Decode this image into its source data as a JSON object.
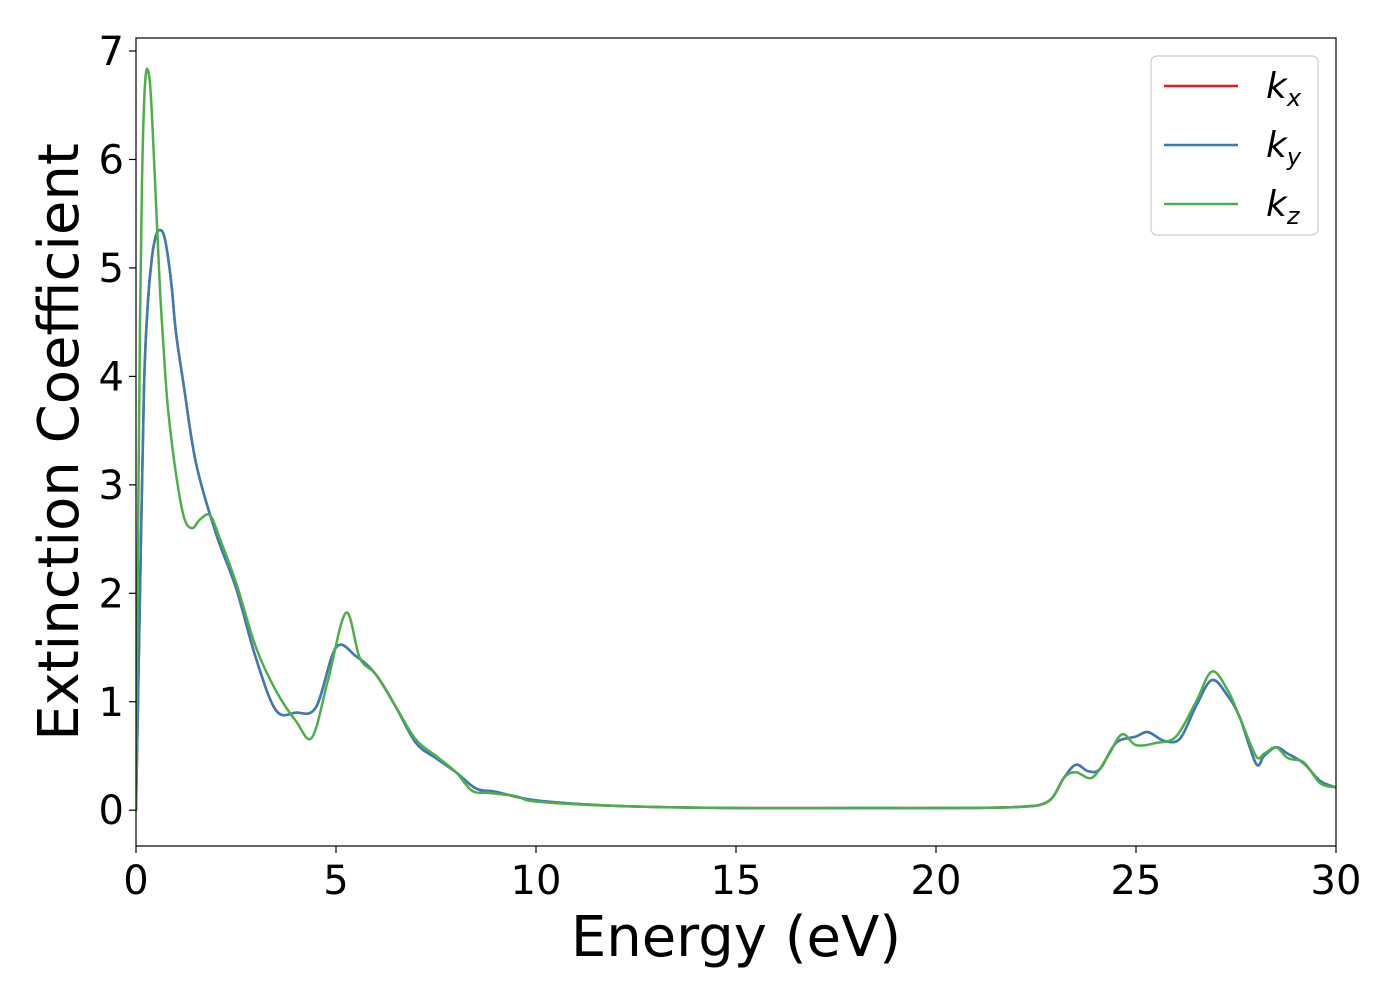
{
  "chart_data": {
    "type": "line",
    "xlabel": "Energy (eV)",
    "ylabel": "Extinction Coefficient",
    "xlim": [
      0,
      30
    ],
    "ylim": [
      -0.33,
      7.12
    ],
    "x_ticks": [
      "0",
      "5",
      "10",
      "15",
      "20",
      "25",
      "30"
    ],
    "y_ticks": [
      "0",
      "1",
      "2",
      "3",
      "4",
      "5",
      "6",
      "7"
    ],
    "grid": false,
    "legend_position": "top-right",
    "series": [
      {
        "name": "k",
        "subscript": "x",
        "color": "#e41a1c",
        "x": [
          0,
          0.1,
          0.2,
          0.3,
          0.4,
          0.5,
          0.6,
          0.7,
          0.8,
          0.9,
          1.0,
          1.2,
          1.5,
          2.0,
          2.5,
          3.0,
          3.5,
          4.0,
          4.5,
          5.0,
          5.5,
          6.0,
          6.5,
          7.0,
          7.5,
          8.0,
          8.5,
          9.0,
          10.0,
          12.0,
          15.0,
          18.0,
          20.0,
          22.0,
          22.8,
          23.2,
          23.5,
          23.8,
          24.1,
          24.5,
          25.0,
          25.3,
          25.7,
          26.1,
          26.5,
          26.9,
          27.3,
          27.6,
          28.0,
          28.2,
          28.5,
          28.8,
          29.2,
          29.6,
          30.0
        ],
        "y": [
          0.0,
          2.0,
          3.9,
          4.7,
          5.1,
          5.3,
          5.35,
          5.3,
          5.1,
          4.8,
          4.4,
          3.9,
          3.2,
          2.55,
          2.05,
          1.4,
          0.92,
          0.9,
          0.95,
          1.5,
          1.42,
          1.25,
          0.95,
          0.62,
          0.48,
          0.35,
          0.2,
          0.17,
          0.09,
          0.04,
          0.02,
          0.02,
          0.02,
          0.03,
          0.08,
          0.3,
          0.42,
          0.36,
          0.38,
          0.62,
          0.68,
          0.72,
          0.64,
          0.66,
          0.96,
          1.2,
          1.05,
          0.85,
          0.43,
          0.5,
          0.58,
          0.52,
          0.43,
          0.27,
          0.21
        ]
      },
      {
        "name": "k",
        "subscript": "y",
        "color": "#377eb8",
        "x": [
          0,
          0.1,
          0.2,
          0.3,
          0.4,
          0.5,
          0.6,
          0.7,
          0.8,
          0.9,
          1.0,
          1.2,
          1.5,
          2.0,
          2.5,
          3.0,
          3.5,
          4.0,
          4.5,
          5.0,
          5.5,
          6.0,
          6.5,
          7.0,
          7.5,
          8.0,
          8.5,
          9.0,
          10.0,
          12.0,
          15.0,
          18.0,
          20.0,
          22.0,
          22.8,
          23.2,
          23.5,
          23.8,
          24.1,
          24.5,
          25.0,
          25.3,
          25.7,
          26.1,
          26.5,
          26.9,
          27.3,
          27.6,
          28.0,
          28.2,
          28.5,
          28.8,
          29.2,
          29.6,
          30.0
        ],
        "y": [
          0.0,
          2.0,
          3.9,
          4.7,
          5.1,
          5.3,
          5.35,
          5.3,
          5.1,
          4.8,
          4.4,
          3.9,
          3.2,
          2.55,
          2.05,
          1.4,
          0.92,
          0.9,
          0.95,
          1.5,
          1.42,
          1.25,
          0.95,
          0.62,
          0.48,
          0.35,
          0.2,
          0.17,
          0.09,
          0.04,
          0.02,
          0.02,
          0.02,
          0.03,
          0.08,
          0.3,
          0.42,
          0.36,
          0.38,
          0.62,
          0.68,
          0.72,
          0.64,
          0.66,
          0.96,
          1.2,
          1.05,
          0.85,
          0.43,
          0.5,
          0.58,
          0.52,
          0.43,
          0.27,
          0.21
        ]
      },
      {
        "name": "k",
        "subscript": "z",
        "color": "#4daf4a",
        "x": [
          0,
          0.05,
          0.1,
          0.15,
          0.2,
          0.25,
          0.3,
          0.35,
          0.4,
          0.5,
          0.6,
          0.7,
          0.8,
          1.0,
          1.2,
          1.4,
          1.6,
          1.85,
          2.1,
          2.5,
          3.0,
          3.5,
          4.0,
          4.4,
          4.8,
          5.25,
          5.6,
          6.0,
          6.5,
          7.0,
          7.5,
          8.0,
          8.4,
          8.8,
          9.5,
          10.0,
          12.0,
          15.0,
          18.0,
          20.0,
          22.0,
          22.8,
          23.2,
          23.5,
          23.9,
          24.3,
          24.65,
          25.0,
          25.5,
          26.0,
          26.5,
          26.9,
          27.3,
          27.6,
          28.0,
          28.2,
          28.5,
          28.8,
          29.2,
          29.6,
          30.0
        ],
        "y": [
          0.0,
          2.5,
          4.5,
          5.8,
          6.5,
          6.8,
          6.82,
          6.7,
          6.4,
          5.6,
          4.8,
          4.2,
          3.7,
          3.1,
          2.7,
          2.6,
          2.68,
          2.72,
          2.5,
          2.1,
          1.5,
          1.1,
          0.82,
          0.67,
          1.2,
          1.82,
          1.4,
          1.25,
          0.95,
          0.65,
          0.5,
          0.35,
          0.18,
          0.16,
          0.13,
          0.08,
          0.04,
          0.02,
          0.02,
          0.02,
          0.03,
          0.08,
          0.3,
          0.35,
          0.3,
          0.5,
          0.7,
          0.6,
          0.62,
          0.68,
          1.0,
          1.28,
          1.1,
          0.85,
          0.5,
          0.52,
          0.58,
          0.48,
          0.44,
          0.25,
          0.21
        ]
      }
    ]
  }
}
